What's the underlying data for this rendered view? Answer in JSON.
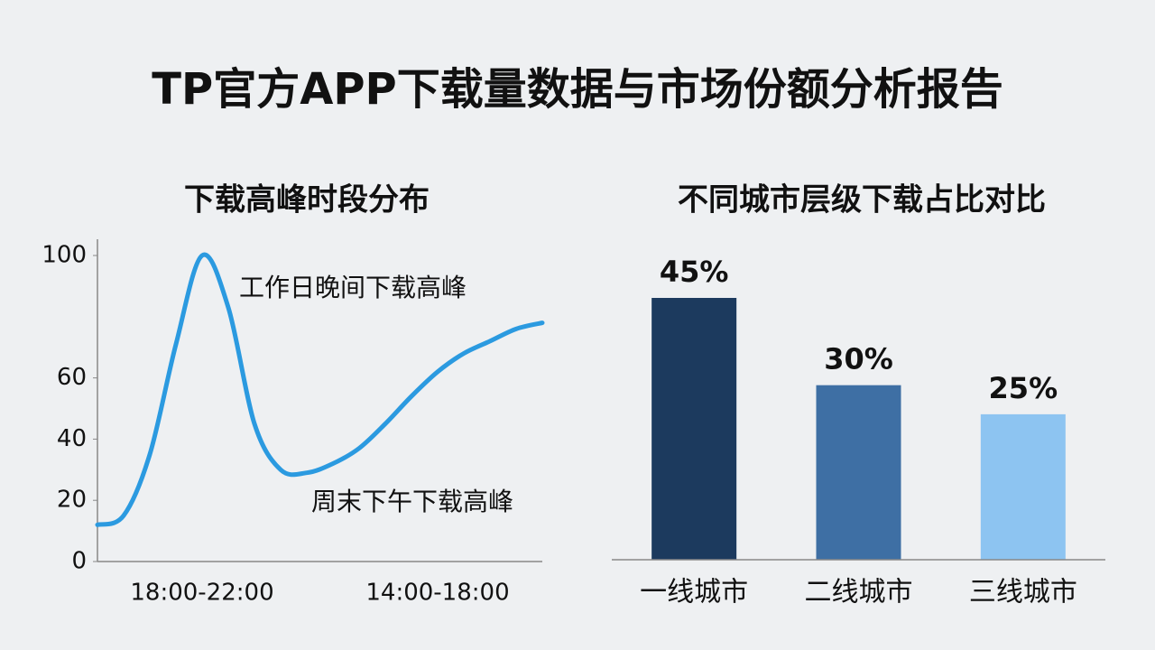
{
  "title": "TP官方APP下载量数据与市场份额分析报告",
  "chart_data": [
    {
      "type": "line",
      "title": "下载高峰时段分布",
      "categories": [
        null,
        null,
        null,
        null,
        "18:00-22:00",
        null,
        null,
        null,
        null,
        null,
        null,
        null,
        null,
        "14:00-18:00",
        null,
        null,
        null,
        null
      ],
      "values": [
        12,
        15,
        35,
        71,
        100,
        83,
        45,
        30,
        29,
        32,
        37,
        45,
        54,
        62,
        68,
        72,
        76,
        78
      ],
      "color": "#2b9ae0",
      "ylim": [
        0,
        100
      ],
      "yticks": [
        0,
        20,
        40,
        60,
        100
      ],
      "annotations": [
        "工作日晚间下载高峰",
        "周末下午下载高峰"
      ]
    },
    {
      "type": "bar",
      "title": "不同城市层级下载占比对比",
      "categories": [
        "一线城市",
        "二线城市",
        "三线城市"
      ],
      "values": [
        45,
        30,
        25
      ],
      "value_labels": [
        "45%",
        "30%",
        "25%"
      ],
      "colors": [
        "#1c3a5e",
        "#3e6fa4",
        "#8dc4f1"
      ]
    }
  ]
}
